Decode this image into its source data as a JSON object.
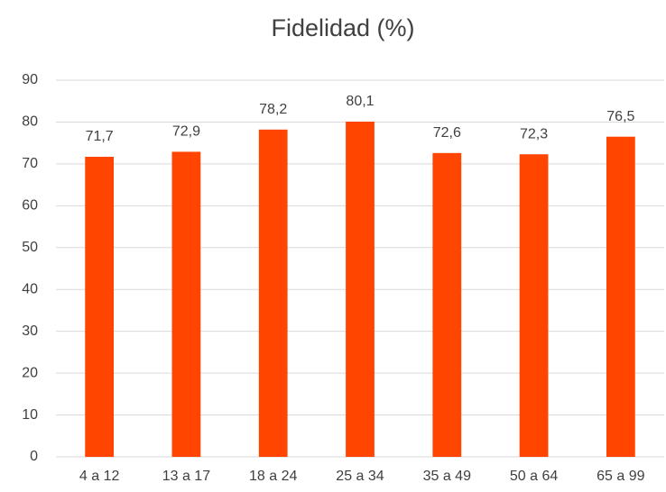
{
  "chart_data": {
    "type": "bar",
    "title": "Fidelidad (%)",
    "categories": [
      "4 a 12",
      "13 a 17",
      "18 a 24",
      "25 a 34",
      "35 a 49",
      "50 a 64",
      "65 a 99"
    ],
    "values": [
      71.7,
      72.9,
      78.2,
      80.1,
      72.6,
      72.3,
      76.5
    ],
    "value_labels": [
      "71,7",
      "72,9",
      "78,2",
      "80,1",
      "72,6",
      "72,3",
      "76,5"
    ],
    "color": "#ff4500",
    "ylim": [
      0,
      90
    ],
    "yticks": [
      0,
      10,
      20,
      30,
      40,
      50,
      60,
      70,
      80,
      90
    ],
    "grid": true
  }
}
